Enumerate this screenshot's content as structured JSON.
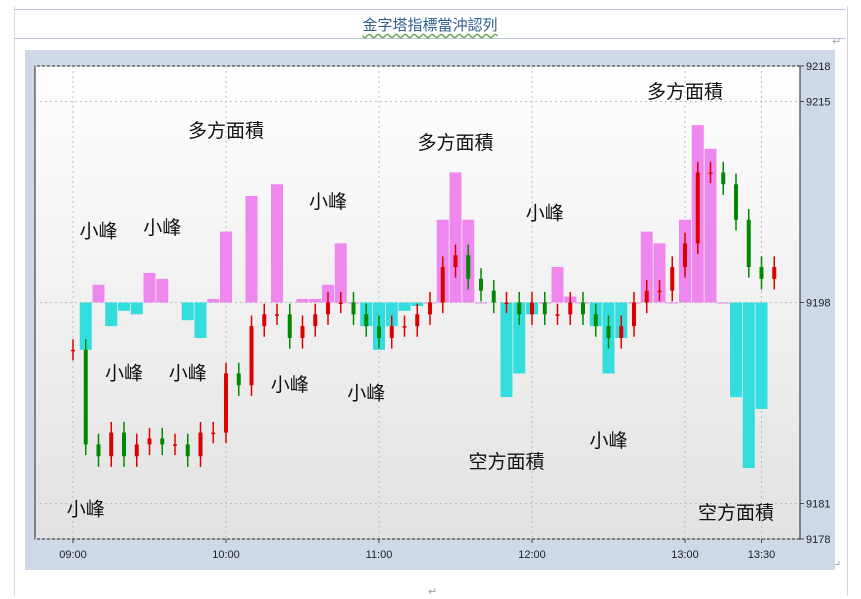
{
  "document": {
    "title": "金字塔指標當沖認列"
  },
  "chart_data": {
    "type": "bar",
    "x_ticks": [
      "09:00",
      "10:00",
      "11:00",
      "12:00",
      "13:00",
      "13:30"
    ],
    "y_ticks": [
      9218,
      9215,
      9198,
      9181,
      9178
    ],
    "ylim": [
      9178,
      9218
    ],
    "oscillator_baseline": 9198,
    "grid": true,
    "series": [
      {
        "colors": {
          "positive": "#ee88ee",
          "negative": "#33dddd"
        },
        "points": [
          {
            "t": "09:05",
            "v": -4
          },
          {
            "t": "09:10",
            "v": 1.5
          },
          {
            "t": "09:15",
            "v": -2
          },
          {
            "t": "09:20",
            "v": -0.7
          },
          {
            "t": "09:25",
            "v": -1
          },
          {
            "t": "09:30",
            "v": 2.5
          },
          {
            "t": "09:35",
            "v": 2
          },
          {
            "t": "09:45",
            "v": -1.5
          },
          {
            "t": "09:50",
            "v": -3
          },
          {
            "t": "09:55",
            "v": 0.3
          },
          {
            "t": "10:00",
            "v": 6
          },
          {
            "t": "10:10",
            "v": 9
          },
          {
            "t": "10:20",
            "v": 10
          },
          {
            "t": "10:30",
            "v": 0.3
          },
          {
            "t": "10:35",
            "v": 0.3
          },
          {
            "t": "10:40",
            "v": 1.5
          },
          {
            "t": "10:45",
            "v": 5
          },
          {
            "t": "10:50",
            "v": 0
          },
          {
            "t": "10:55",
            "v": -2
          },
          {
            "t": "11:00",
            "v": -4
          },
          {
            "t": "11:05",
            "v": -2
          },
          {
            "t": "11:10",
            "v": -0.7
          },
          {
            "t": "11:15",
            "v": -0.3
          },
          {
            "t": "11:20",
            "v": 0
          },
          {
            "t": "11:25",
            "v": 7
          },
          {
            "t": "11:30",
            "v": 11
          },
          {
            "t": "11:35",
            "v": 7
          },
          {
            "t": "11:40",
            "v": 0
          },
          {
            "t": "11:50",
            "v": -8
          },
          {
            "t": "11:55",
            "v": -6
          },
          {
            "t": "12:00",
            "v": -1
          },
          {
            "t": "12:05",
            "v": 0
          },
          {
            "t": "12:10",
            "v": 3
          },
          {
            "t": "12:15",
            "v": 0.5
          },
          {
            "t": "12:20",
            "v": 0
          },
          {
            "t": "12:25",
            "v": -2
          },
          {
            "t": "12:30",
            "v": -6
          },
          {
            "t": "12:35",
            "v": -3
          },
          {
            "t": "12:40",
            "v": 0
          },
          {
            "t": "12:45",
            "v": 6
          },
          {
            "t": "12:50",
            "v": 5
          },
          {
            "t": "12:55",
            "v": 0
          },
          {
            "t": "13:00",
            "v": 7
          },
          {
            "t": "13:05",
            "v": 15
          },
          {
            "t": "13:10",
            "v": 13
          },
          {
            "t": "13:15",
            "v": 0
          },
          {
            "t": "13:20",
            "v": -8
          },
          {
            "t": "13:25",
            "v": -14
          },
          {
            "t": "13:30",
            "v": -9
          }
        ]
      },
      {
        "colors": {
          "up": "#dd0000",
          "down": "#008800"
        },
        "points": [
          {
            "t": "09:00",
            "v": 9194
          },
          {
            "t": "09:05",
            "v": 9186
          },
          {
            "t": "09:10",
            "v": 9185
          },
          {
            "t": "09:15",
            "v": 9187
          },
          {
            "t": "09:20",
            "v": 9185
          },
          {
            "t": "09:25",
            "v": 9186
          },
          {
            "t": "09:30",
            "v": 9186.5
          },
          {
            "t": "09:35",
            "v": 9186
          },
          {
            "t": "09:40",
            "v": 9186
          },
          {
            "t": "09:45",
            "v": 9185
          },
          {
            "t": "09:50",
            "v": 9187
          },
          {
            "t": "09:55",
            "v": 9187
          },
          {
            "t": "10:00",
            "v": 9192
          },
          {
            "t": "10:05",
            "v": 9191
          },
          {
            "t": "10:10",
            "v": 9196
          },
          {
            "t": "10:15",
            "v": 9197
          },
          {
            "t": "10:20",
            "v": 9197
          },
          {
            "t": "10:25",
            "v": 9195
          },
          {
            "t": "10:30",
            "v": 9196
          },
          {
            "t": "10:35",
            "v": 9197
          },
          {
            "t": "10:40",
            "v": 9198
          },
          {
            "t": "10:45",
            "v": 9198
          },
          {
            "t": "10:50",
            "v": 9197
          },
          {
            "t": "10:55",
            "v": 9196
          },
          {
            "t": "11:00",
            "v": 9195
          },
          {
            "t": "11:05",
            "v": 9196
          },
          {
            "t": "11:10",
            "v": 9196
          },
          {
            "t": "11:15",
            "v": 9197
          },
          {
            "t": "11:20",
            "v": 9198
          },
          {
            "t": "11:25",
            "v": 9201
          },
          {
            "t": "11:30",
            "v": 9202
          },
          {
            "t": "11:35",
            "v": 9200
          },
          {
            "t": "11:40",
            "v": 9199
          },
          {
            "t": "11:45",
            "v": 9198
          },
          {
            "t": "11:50",
            "v": 9198
          },
          {
            "t": "11:55",
            "v": 9197
          },
          {
            "t": "12:00",
            "v": 9198
          },
          {
            "t": "12:05",
            "v": 9197
          },
          {
            "t": "12:10",
            "v": 9197
          },
          {
            "t": "12:15",
            "v": 9198
          },
          {
            "t": "12:20",
            "v": 9197
          },
          {
            "t": "12:25",
            "v": 9196
          },
          {
            "t": "12:30",
            "v": 9195
          },
          {
            "t": "12:35",
            "v": 9196
          },
          {
            "t": "12:40",
            "v": 9198
          },
          {
            "t": "12:45",
            "v": 9199
          },
          {
            "t": "12:50",
            "v": 9199
          },
          {
            "t": "12:55",
            "v": 9201
          },
          {
            "t": "13:00",
            "v": 9203
          },
          {
            "t": "13:05",
            "v": 9209
          },
          {
            "t": "13:10",
            "v": 9209
          },
          {
            "t": "13:15",
            "v": 9208
          },
          {
            "t": "13:20",
            "v": 9205
          },
          {
            "t": "13:25",
            "v": 9201
          },
          {
            "t": "13:30",
            "v": 9200
          },
          {
            "t": "13:35",
            "v": 9201
          }
        ]
      }
    ],
    "annotations": [
      {
        "text": "多方面積",
        "t": "10:00",
        "v": 9212
      },
      {
        "text": "多方面積",
        "t": "11:30",
        "v": 9211
      },
      {
        "text": "多方面積",
        "t": "13:00",
        "v": 9215.3
      },
      {
        "text": "空方面積",
        "t": "11:50",
        "v": 9184
      },
      {
        "text": "空方面積",
        "t": "13:20",
        "v": 9179.7
      },
      {
        "text": "小峰",
        "t": "09:10",
        "v": 9203.5
      },
      {
        "text": "小峰",
        "t": "09:35",
        "v": 9203.8
      },
      {
        "text": "小峰",
        "t": "10:40",
        "v": 9206
      },
      {
        "text": "小峰",
        "t": "12:05",
        "v": 9205
      },
      {
        "text": "小峰",
        "t": "09:20",
        "v": 9191.5
      },
      {
        "text": "小峰",
        "t": "09:45",
        "v": 9191.5
      },
      {
        "text": "小峰",
        "t": "10:25",
        "v": 9190.5
      },
      {
        "text": "小峰",
        "t": "10:55",
        "v": 9189.8
      },
      {
        "text": "小峰",
        "t": "12:30",
        "v": 9185.8
      },
      {
        "text": "小峰",
        "t": "09:05",
        "v": 9180
      }
    ]
  }
}
